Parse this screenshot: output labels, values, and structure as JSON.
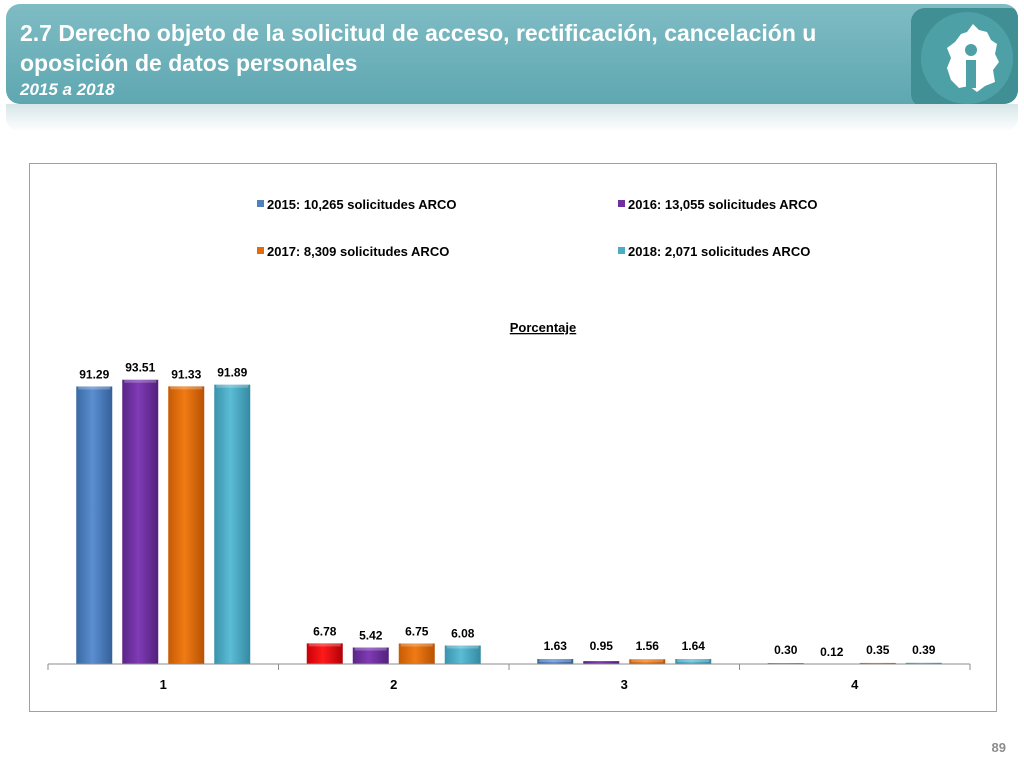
{
  "header": {
    "title": "2.7 Derecho objeto de la solicitud de acceso, rectificación, cancelación u oposición de datos personales",
    "subtitle": "2015 a 2018"
  },
  "page_number": "89",
  "chart_data": {
    "type": "bar",
    "title": "Porcentaje",
    "categories": [
      "1",
      "2",
      "3",
      "4"
    ],
    "ylim": [
      0,
      100
    ],
    "grid": false,
    "legend_position": "top",
    "series": [
      {
        "name": "2015: 10,265 solicitudes ARCO",
        "color": "#4f81bd",
        "values": [
          91.29,
          6.78,
          1.63,
          0.3
        ]
      },
      {
        "name": "2016: 13,055 solicitudes ARCO",
        "color": "#7030a0",
        "values": [
          93.51,
          5.42,
          0.95,
          0.12
        ]
      },
      {
        "name": "2017: 8,309 solicitudes ARCO",
        "color": "#e36c09",
        "values": [
          91.33,
          6.75,
          1.56,
          0.35
        ]
      },
      {
        "name": "2018: 2,071 solicitudes ARCO",
        "color": "#4bacc6",
        "values": [
          91.89,
          6.08,
          1.64,
          0.39
        ]
      }
    ],
    "value_labels": [
      [
        "91.29",
        "6.78",
        "1.63",
        "0.30"
      ],
      [
        "93.51",
        "5.42",
        "0.95",
        "0.12"
      ],
      [
        "91.33",
        "6.75",
        "1.56",
        "0.35"
      ],
      [
        "91.89",
        "6.08",
        "1.64",
        "0.39"
      ]
    ],
    "highlight_color": "#e8000b"
  }
}
